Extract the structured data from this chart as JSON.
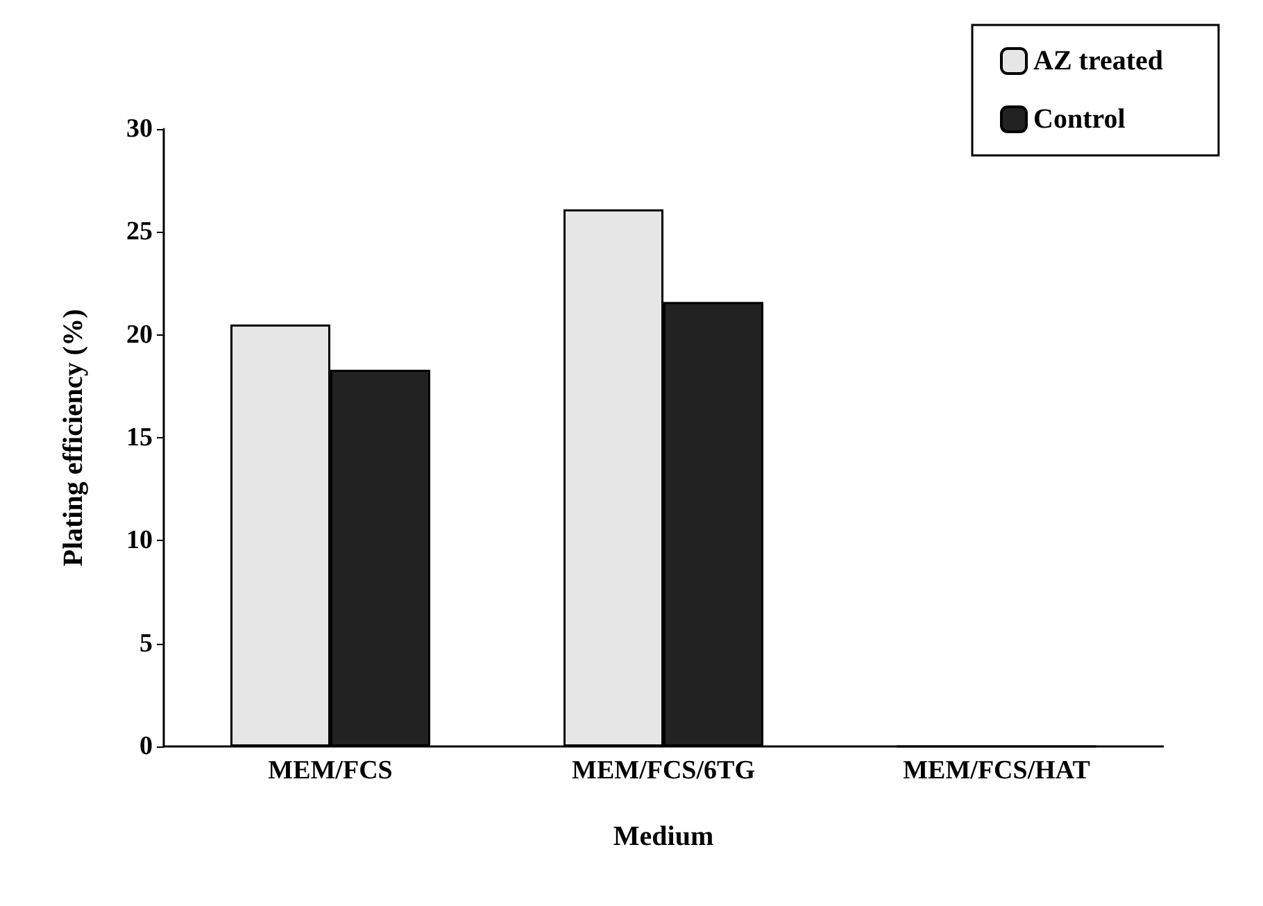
{
  "chart_data": {
    "type": "bar",
    "xlabel": "Medium",
    "ylabel": "Plating efficiency (%)",
    "categories": [
      "MEM/FCS",
      "MEM/FCS/6TG",
      "MEM/FCS/HAT"
    ],
    "series": [
      {
        "name": "AZ treated",
        "color": "#e6e6e6",
        "values": [
          20.5,
          26.1,
          0
        ]
      },
      {
        "name": "Control",
        "color": "#222222",
        "values": [
          18.3,
          21.6,
          0
        ]
      }
    ],
    "ylim": [
      0,
      30
    ],
    "yticks": [
      0,
      5,
      10,
      15,
      20,
      25,
      30
    ],
    "grid": false,
    "legend": "top right"
  }
}
